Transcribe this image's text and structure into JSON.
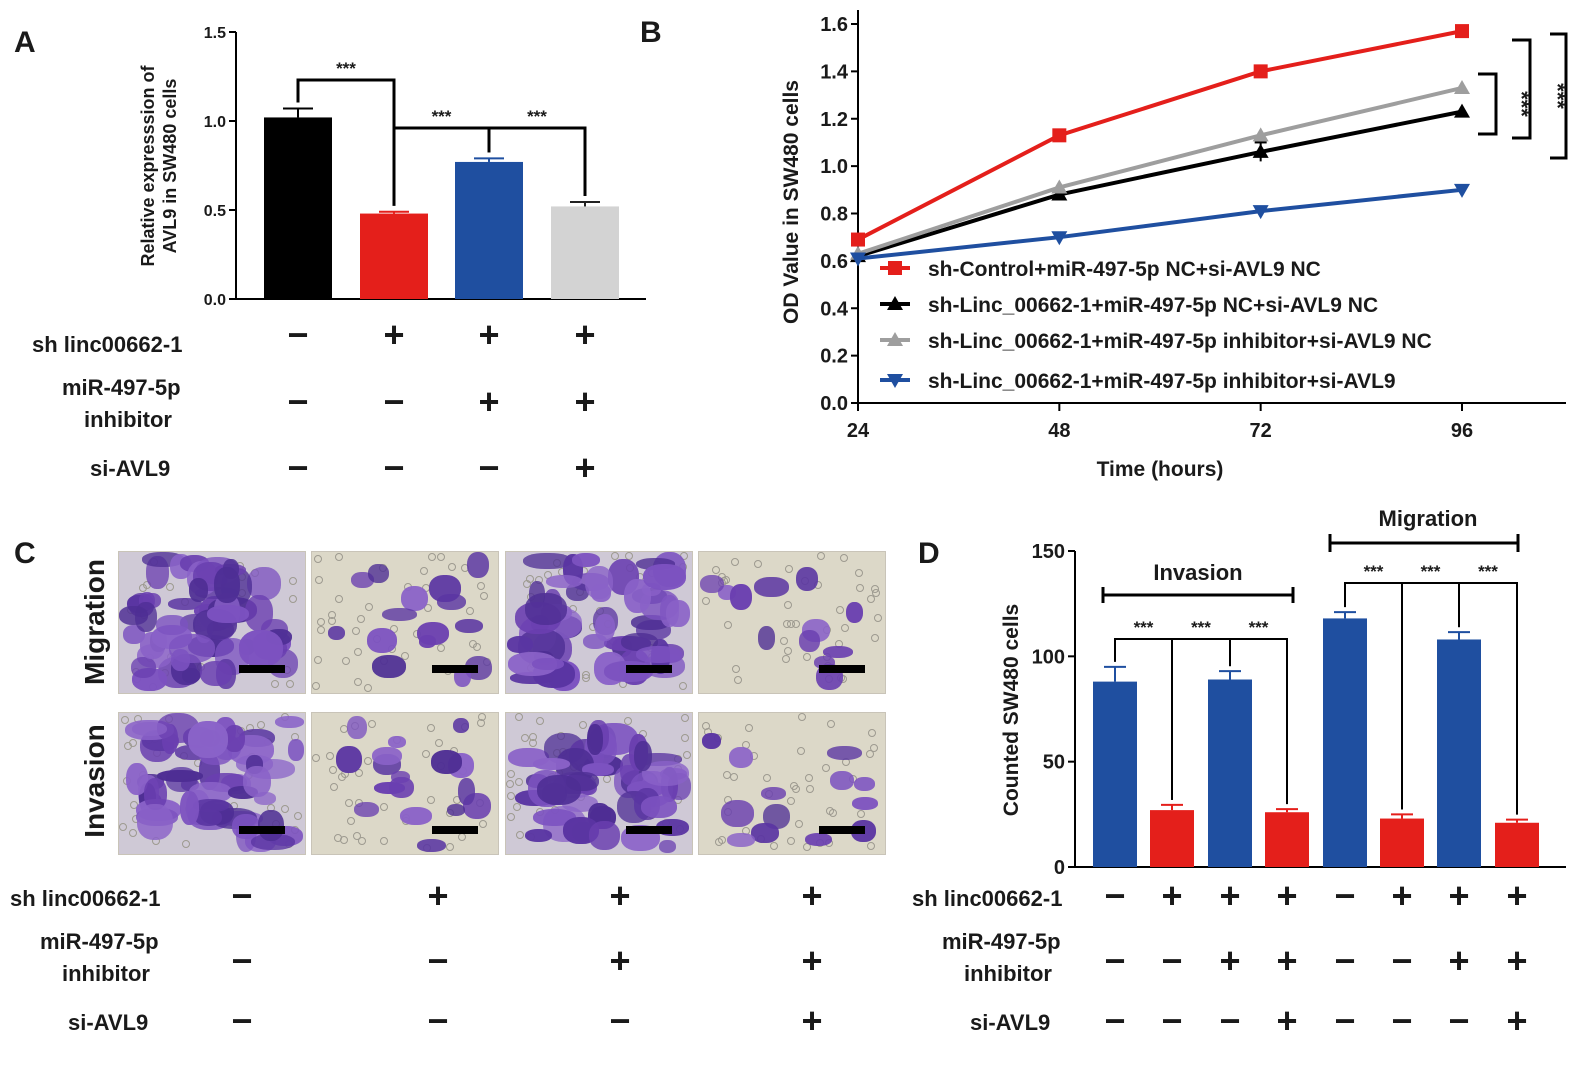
{
  "panel_labels": {
    "a": "A",
    "b": "B",
    "c": "C",
    "d": "D"
  },
  "condition_labels": {
    "sh": "sh linc00662-1",
    "mir_line1": "miR-497-5p",
    "mir_line2": "inhibitor",
    "si": "si-AVL9"
  },
  "signs": {
    "groups4": {
      "sh": [
        "−",
        "+",
        "+",
        "+"
      ],
      "mir": [
        "−",
        "−",
        "+",
        "+"
      ],
      "si": [
        "−",
        "−",
        "−",
        "+"
      ]
    },
    "groups8": {
      "sh": [
        "−",
        "+",
        "+",
        "+",
        "−",
        "+",
        "+",
        "+"
      ],
      "mir": [
        "−",
        "−",
        "+",
        "+",
        "−",
        "−",
        "+",
        "+"
      ],
      "si": [
        "−",
        "−",
        "−",
        "+",
        "−",
        "−",
        "−",
        "+"
      ]
    }
  },
  "microscopy": {
    "row_labels": [
      "Migration",
      "Invasion"
    ],
    "densities": [
      [
        1.0,
        0.28,
        0.95,
        0.22
      ],
      [
        0.98,
        0.3,
        0.9,
        0.24
      ]
    ]
  },
  "colors": {
    "black": "#000000",
    "red": "#e41f1b",
    "blue": "#1f4fa0",
    "gray": "#d3d3d3",
    "gray_line": "#9e9e9e"
  },
  "chart_data": [
    {
      "id": "A",
      "type": "bar",
      "ylabel_line1": "Relative expresssion of",
      "ylabel_line2": "AVL9 in SW480 cells",
      "ylim": [
        0,
        1.5
      ],
      "yticks": [
        0.0,
        0.5,
        1.0,
        1.5
      ],
      "ytick_labels": [
        "0.0",
        "0.5",
        "1.0",
        "1.5"
      ],
      "values": [
        1.02,
        0.48,
        0.77,
        0.52
      ],
      "errors": [
        0.05,
        0.01,
        0.02,
        0.025
      ],
      "bar_colors": [
        "#000000",
        "#e41f1b",
        "#1f4fa0",
        "#d3d3d3"
      ],
      "significance": [
        {
          "from": 0,
          "to": 1,
          "label": "***"
        },
        {
          "from": 1,
          "to": 2,
          "label": "***"
        },
        {
          "from": 2,
          "to": 3,
          "label": "***"
        }
      ]
    },
    {
      "id": "B",
      "type": "line",
      "xlabel": "Time (hours)",
      "ylabel": "OD Value in SW480 cells",
      "x": [
        24,
        48,
        72,
        96
      ],
      "xtick_labels": [
        "24",
        "48",
        "72",
        "96"
      ],
      "ylim": [
        0,
        1.6
      ],
      "yticks": [
        0,
        0.2,
        0.4,
        0.6,
        0.8,
        1.0,
        1.2,
        1.4,
        1.6
      ],
      "ytick_labels": [
        "0.0",
        "0.2",
        "0.4",
        "0.6",
        "0.8",
        "1.0",
        "1.2",
        "1.4",
        "1.6"
      ],
      "series": [
        {
          "name": "sh-Control+miR-497-5p NC+si-AVL9 NC",
          "values": [
            0.69,
            1.13,
            1.4,
            1.57
          ],
          "color": "#e41f1b",
          "marker": "square"
        },
        {
          "name": "sh-Linc_00662-1+miR-497-5p NC+si-AVL9 NC",
          "values": [
            0.62,
            0.88,
            1.06,
            1.23
          ],
          "color": "#000000",
          "marker": "triangle"
        },
        {
          "name": "sh-Linc_00662-1+miR-497-5p inhibitor+si-AVL9 NC",
          "values": [
            0.63,
            0.91,
            1.13,
            1.33
          ],
          "color": "#9e9e9e",
          "marker": "triangle"
        },
        {
          "name": "sh-Linc_00662-1+miR-497-5p inhibitor+si-AVL9",
          "values": [
            0.61,
            0.7,
            0.81,
            0.9
          ],
          "color": "#1f4fa0",
          "marker": "triangle-down"
        }
      ],
      "significance": [
        {
          "label": "***"
        },
        {
          "label": "***"
        }
      ]
    },
    {
      "id": "D",
      "type": "bar",
      "ylabel": "Counted SW480 cells",
      "ylim": [
        0,
        150
      ],
      "yticks": [
        0,
        50,
        100,
        150
      ],
      "ytick_labels": [
        "0",
        "50",
        "100",
        "150"
      ],
      "group_labels": [
        "Invasion",
        "Migration"
      ],
      "values": [
        88,
        27,
        89,
        26,
        118,
        23,
        108,
        21
      ],
      "errors": [
        7,
        2.5,
        4,
        1.5,
        3,
        2,
        3.5,
        1.5
      ],
      "bar_colors": [
        "#1f4fa0",
        "#e41f1b",
        "#1f4fa0",
        "#e41f1b",
        "#1f4fa0",
        "#e41f1b",
        "#1f4fa0",
        "#e41f1b"
      ],
      "significance": [
        {
          "from": 0,
          "to": 1,
          "label": "***"
        },
        {
          "from": 1,
          "to": 2,
          "label": "***"
        },
        {
          "from": 2,
          "to": 3,
          "label": "***"
        },
        {
          "from": 4,
          "to": 5,
          "label": "***"
        },
        {
          "from": 5,
          "to": 6,
          "label": "***"
        },
        {
          "from": 6,
          "to": 7,
          "label": "***"
        }
      ]
    }
  ]
}
